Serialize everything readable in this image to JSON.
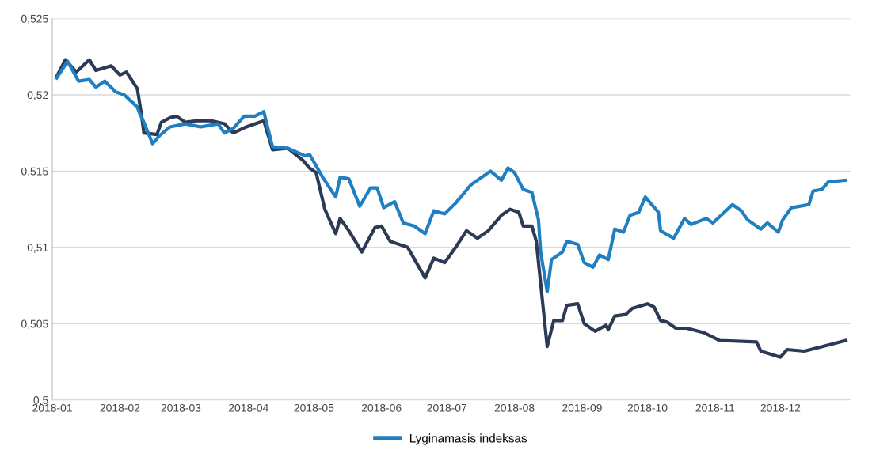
{
  "chart_data": {
    "type": "line",
    "x": [
      "2018-01-03",
      "2018-01-07",
      "2018-01-12",
      "2018-01-18",
      "2018-01-21",
      "2018-01-28",
      "2018-02-01",
      "2018-02-04",
      "2018-02-09",
      "2018-02-11",
      "2018-02-12",
      "2018-02-18",
      "2018-02-20",
      "2018-02-24",
      "2018-02-27",
      "2018-03-03",
      "2018-03-08",
      "2018-03-15",
      "2018-03-21",
      "2018-03-25",
      "2018-03-31",
      "2018-04-08",
      "2018-04-12",
      "2018-04-19",
      "2018-04-26",
      "2018-04-29",
      "2018-05-02",
      "2018-05-06",
      "2018-05-11",
      "2018-05-13",
      "2018-05-17",
      "2018-05-23",
      "2018-05-29",
      "2018-06-01",
      "2018-06-05",
      "2018-06-13",
      "2018-06-21",
      "2018-06-25",
      "2018-06-30",
      "2018-07-05",
      "2018-07-10",
      "2018-07-15",
      "2018-07-20",
      "2018-07-26",
      "2018-07-30",
      "2018-08-03",
      "2018-08-05",
      "2018-08-09",
      "2018-08-11",
      "2018-08-16",
      "2018-08-19",
      "2018-08-23",
      "2018-08-25",
      "2018-08-30",
      "2018-09-02",
      "2018-09-07",
      "2018-09-12",
      "2018-09-13",
      "2018-09-16",
      "2018-09-21",
      "2018-09-24",
      "2018-10-01",
      "2018-10-04",
      "2018-10-07",
      "2018-10-10",
      "2018-10-14",
      "2018-10-19",
      "2018-10-27",
      "2018-11-03",
      "2018-11-20",
      "2018-11-22",
      "2018-12-01",
      "2018-12-04",
      "2018-12-12",
      "2018-12-23",
      "2018-12-31"
    ],
    "series": [
      {
        "color": "#2b3a55",
        "values": [
          0.5212,
          0.5223,
          0.5215,
          0.5223,
          0.5216,
          0.5219,
          0.5213,
          0.5215,
          0.5204,
          0.5186,
          0.5175,
          0.5174,
          0.5182,
          0.5185,
          0.5186,
          0.5182,
          0.5183,
          0.5183,
          0.5181,
          0.5175,
          0.5179,
          0.5183,
          0.5164,
          0.5165,
          0.5157,
          0.5152,
          0.5149,
          0.5125,
          0.5109,
          0.5119,
          0.5111,
          0.5097,
          0.5113,
          0.5114,
          0.5104,
          0.51,
          0.508,
          0.5093,
          0.509,
          0.51,
          0.5111,
          0.5106,
          0.5111,
          0.5121,
          0.5125,
          0.5123,
          0.5114,
          0.5114,
          0.5104,
          0.5035,
          0.5052,
          0.5052,
          0.5062,
          0.5063,
          0.505,
          0.5045,
          0.5049,
          0.5046,
          0.5055,
          0.5056,
          0.506,
          0.5063,
          0.5061,
          0.5052,
          0.5051,
          0.5047,
          0.5047,
          0.5044,
          0.5039,
          0.5038,
          0.5032,
          0.5028,
          0.5033,
          0.5032,
          0.5036,
          0.5039
        ]
      },
      {
        "name": "Lyginamasis indeksas",
        "color": "#1f7fc1",
        "x": [
          "2018-01-03",
          "2018-01-08",
          "2018-01-13",
          "2018-01-18",
          "2018-01-21",
          "2018-01-25",
          "2018-01-30",
          "2018-02-03",
          "2018-02-09",
          "2018-02-10",
          "2018-02-12",
          "2018-02-16",
          "2018-02-19",
          "2018-02-24",
          "2018-03-03",
          "2018-03-10",
          "2018-03-18",
          "2018-03-21",
          "2018-03-25",
          "2018-03-30",
          "2018-04-04",
          "2018-04-08",
          "2018-04-12",
          "2018-04-19",
          "2018-04-27",
          "2018-04-29",
          "2018-05-05",
          "2018-05-11",
          "2018-05-13",
          "2018-05-17",
          "2018-05-22",
          "2018-05-27",
          "2018-05-30",
          "2018-06-02",
          "2018-06-07",
          "2018-06-11",
          "2018-06-16",
          "2018-06-21",
          "2018-06-25",
          "2018-06-30",
          "2018-07-05",
          "2018-07-12",
          "2018-07-21",
          "2018-07-26",
          "2018-07-29",
          "2018-08-01",
          "2018-08-05",
          "2018-08-09",
          "2018-08-12",
          "2018-08-13",
          "2018-08-16",
          "2018-08-18",
          "2018-08-23",
          "2018-08-25",
          "2018-08-30",
          "2018-09-02",
          "2018-09-06",
          "2018-09-09",
          "2018-09-13",
          "2018-09-16",
          "2018-09-20",
          "2018-09-23",
          "2018-09-27",
          "2018-09-30",
          "2018-10-06",
          "2018-10-07",
          "2018-10-13",
          "2018-10-18",
          "2018-10-21",
          "2018-10-28",
          "2018-10-31",
          "2018-11-09",
          "2018-11-13",
          "2018-11-16",
          "2018-11-22",
          "2018-11-25",
          "2018-11-30",
          "2018-12-02",
          "2018-12-06",
          "2018-12-14",
          "2018-12-16",
          "2018-12-20",
          "2018-12-23",
          "2018-12-31"
        ],
        "values": [
          0.5211,
          0.5222,
          0.5209,
          0.521,
          0.5205,
          0.5209,
          0.5202,
          0.52,
          0.5192,
          0.5188,
          0.5182,
          0.5168,
          0.5173,
          0.5179,
          0.5181,
          0.5179,
          0.5181,
          0.5175,
          0.5178,
          0.5186,
          0.5186,
          0.5189,
          0.5166,
          0.5165,
          0.516,
          0.5161,
          0.5146,
          0.5133,
          0.5146,
          0.5145,
          0.5127,
          0.5139,
          0.5139,
          0.5126,
          0.513,
          0.5116,
          0.5114,
          0.5109,
          0.5124,
          0.5122,
          0.5129,
          0.5141,
          0.515,
          0.5144,
          0.5152,
          0.5149,
          0.5138,
          0.5136,
          0.5118,
          0.5097,
          0.5071,
          0.5092,
          0.5097,
          0.5104,
          0.5102,
          0.509,
          0.5087,
          0.5095,
          0.5092,
          0.5112,
          0.511,
          0.5121,
          0.5123,
          0.5133,
          0.5123,
          0.5111,
          0.5106,
          0.5119,
          0.5115,
          0.5119,
          0.5116,
          0.5128,
          0.5124,
          0.5118,
          0.5112,
          0.5116,
          0.511,
          0.5118,
          0.5126,
          0.5128,
          0.5137,
          0.5138,
          0.5143,
          0.5144
        ]
      }
    ],
    "xlim": [
      "2018-01-01",
      "2019-01-02"
    ],
    "xticks": [
      {
        "value": "2018-01-01",
        "label": "2018-01"
      },
      {
        "value": "2018-02-01",
        "label": "2018-02"
      },
      {
        "value": "2018-03-01",
        "label": "2018-03"
      },
      {
        "value": "2018-04-01",
        "label": "2018-04"
      },
      {
        "value": "2018-05-01",
        "label": "2018-05"
      },
      {
        "value": "2018-06-01",
        "label": "2018-06"
      },
      {
        "value": "2018-07-01",
        "label": "2018-07"
      },
      {
        "value": "2018-08-01",
        "label": "2018-08"
      },
      {
        "value": "2018-09-01",
        "label": "2018-09"
      },
      {
        "value": "2018-10-01",
        "label": "2018-10"
      },
      {
        "value": "2018-11-01",
        "label": "2018-11"
      },
      {
        "value": "2018-12-01",
        "label": "2018-12"
      }
    ],
    "ylim": [
      0.5,
      0.525
    ],
    "yticks": [
      {
        "value": 0.5,
        "label": "0,5"
      },
      {
        "value": 0.505,
        "label": "0,505"
      },
      {
        "value": 0.51,
        "label": "0,51"
      },
      {
        "value": 0.515,
        "label": "0,515"
      },
      {
        "value": 0.52,
        "label": "0,52"
      },
      {
        "value": 0.525,
        "label": "0,525"
      }
    ],
    "grid": "y",
    "legend": "bottom",
    "marker": "none",
    "line_style": "solid"
  }
}
